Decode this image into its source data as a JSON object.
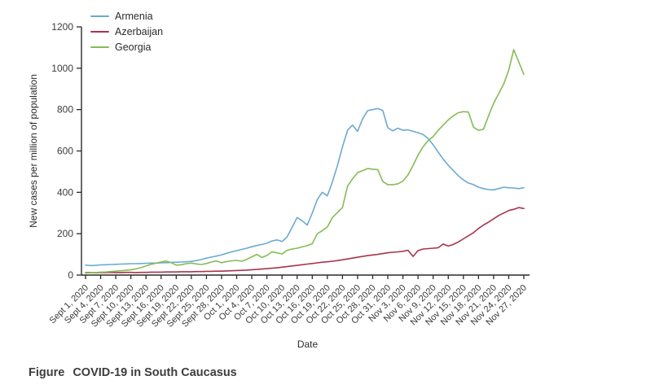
{
  "figure": {
    "caption_label": "Figure",
    "caption_title": "COVID-19 in South Caucasus"
  },
  "chart_data": {
    "type": "line",
    "title": "",
    "xlabel": "Date",
    "ylabel": "New cases per million of population",
    "ylim": [
      0,
      1200
    ],
    "y_ticks": [
      0,
      200,
      400,
      600,
      800,
      1000,
      1200
    ],
    "grid": false,
    "legend_position": "top-left",
    "x_unit": "daily values from Sept 1, 2020 to Nov 27, 2020",
    "x_tick_every_n_days": 3,
    "x_tick_labels": [
      "Sept 1, 2020",
      "Sept 4, 2020",
      "Sept 7, 2020",
      "Sept 10, 2020",
      "Sept 13, 2020",
      "Sept 16, 2020",
      "Sept 19, 2020",
      "Sept 22, 2020",
      "Sept 25, 2020",
      "Sept 28, 2020",
      "Oct 1, 2020",
      "Oct 4, 2020",
      "Oct 7, 2020",
      "Oct 10, 2020",
      "Oct 13, 2020",
      "Oct 16, 2020",
      "Oct 19, 2020",
      "Oct 22, 2020",
      "Oct 25, 2020",
      "Oct 28, 2020",
      "Oct 31, 2020",
      "Nov 3, 2020",
      "Nov 6, 2020",
      "Nov 9, 2020",
      "Nov 12, 2020",
      "Nov 15, 2020",
      "Nov 18, 2020",
      "Nov 21, 2020",
      "Nov 24, 2020",
      "Nov 27, 2020"
    ],
    "series": [
      {
        "name": "Armenia",
        "color": "#6BAAD2",
        "values": [
          48,
          46,
          47,
          49,
          50,
          51,
          52,
          53,
          54,
          55,
          55,
          56,
          57,
          58,
          58,
          59,
          60,
          61,
          62,
          63,
          64,
          66,
          70,
          75,
          82,
          87,
          92,
          98,
          105,
          112,
          118,
          124,
          130,
          137,
          143,
          148,
          154,
          165,
          170,
          162,
          185,
          230,
          278,
          262,
          242,
          300,
          365,
          400,
          383,
          450,
          530,
          620,
          700,
          725,
          695,
          755,
          795,
          800,
          805,
          795,
          712,
          697,
          710,
          700,
          702,
          695,
          688,
          680,
          660,
          630,
          594,
          560,
          531,
          505,
          480,
          460,
          445,
          437,
          425,
          418,
          413,
          412,
          418,
          425,
          422,
          421,
          418,
          422
        ]
      },
      {
        "name": "Azerbaijan",
        "color": "#A8344E",
        "values": [
          12,
          12,
          11,
          12,
          12,
          13,
          12,
          12,
          13,
          13,
          12,
          13,
          13,
          14,
          14,
          14,
          15,
          15,
          15,
          16,
          16,
          16,
          17,
          17,
          18,
          18,
          19,
          19,
          20,
          21,
          22,
          23,
          24,
          26,
          27,
          29,
          31,
          33,
          35,
          38,
          41,
          44,
          47,
          50,
          53,
          56,
          59,
          62,
          64,
          67,
          70,
          74,
          78,
          82,
          86,
          90,
          94,
          97,
          100,
          104,
          108,
          110,
          112,
          115,
          120,
          90,
          118,
          126,
          128,
          130,
          132,
          150,
          140,
          148,
          160,
          175,
          190,
          205,
          225,
          242,
          256,
          272,
          288,
          300,
          312,
          318,
          326,
          322
        ]
      },
      {
        "name": "Georgia",
        "color": "#85BC55",
        "values": [
          10,
          11,
          12,
          14,
          15,
          17,
          19,
          21,
          23,
          26,
          30,
          36,
          44,
          52,
          58,
          63,
          68,
          60,
          48,
          50,
          55,
          58,
          54,
          51,
          56,
          63,
          68,
          60,
          65,
          69,
          71,
          67,
          76,
          88,
          100,
          85,
          95,
          112,
          108,
          102,
          120,
          126,
          130,
          136,
          142,
          152,
          200,
          215,
          232,
          278,
          302,
          327,
          430,
          465,
          495,
          505,
          515,
          512,
          510,
          452,
          437,
          437,
          441,
          455,
          484,
          530,
          580,
          620,
          650,
          670,
          700,
          725,
          750,
          770,
          785,
          790,
          788,
          715,
          700,
          705,
          770,
          830,
          877,
          924,
          990,
          1090,
          1030,
          970
        ]
      }
    ]
  }
}
